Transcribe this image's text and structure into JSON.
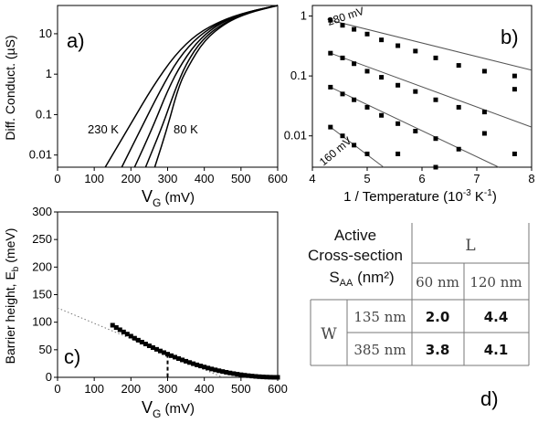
{
  "chart_data": [
    {
      "panel": "a)",
      "type": "line",
      "xlabel_main": "V",
      "xlabel_sub": "G",
      "xlabel_unit": " (mV)",
      "ylabel": "Diff. Conduct. (µS)",
      "xlim": [
        0,
        600
      ],
      "ylim": [
        0.005,
        50
      ],
      "yscale": "log",
      "xticks": [
        0,
        100,
        200,
        300,
        400,
        500,
        600
      ],
      "yticks": [
        {
          "v": 0.01,
          "label": "0.01"
        },
        {
          "v": 0.1,
          "label": "0.1"
        },
        {
          "v": 1,
          "label": "1"
        },
        {
          "v": 10,
          "label": "10"
        }
      ],
      "annotations": {
        "high_T": "230 K",
        "low_T": "80 K"
      },
      "series": [
        {
          "x": [
            130,
            200,
            260,
            320,
            380,
            450,
            520,
            600
          ],
          "y": [
            0.005,
            0.06,
            0.5,
            3,
            10,
            22,
            35,
            50
          ]
        },
        {
          "x": [
            175,
            230,
            280,
            330,
            385,
            450,
            520,
            600
          ],
          "y": [
            0.005,
            0.05,
            0.4,
            2.5,
            9,
            21,
            35,
            50
          ]
        },
        {
          "x": [
            210,
            260,
            300,
            340,
            390,
            450,
            520,
            600
          ],
          "y": [
            0.005,
            0.05,
            0.4,
            2,
            8,
            20,
            34,
            50
          ]
        },
        {
          "x": [
            240,
            285,
            320,
            350,
            395,
            455,
            520,
            600
          ],
          "y": [
            0.005,
            0.05,
            0.4,
            1.8,
            7.5,
            19,
            34,
            50
          ]
        },
        {
          "x": [
            265,
            300,
            330,
            355,
            400,
            460,
            520,
            600
          ],
          "y": [
            0.005,
            0.05,
            0.5,
            1.5,
            7,
            19,
            33,
            50
          ]
        }
      ]
    },
    {
      "panel": "b)",
      "type": "scatter",
      "xlabel": "1 / Temperature (10",
      "xlabel_exp": "-3",
      "xlabel_unit": " K",
      "xlabel_unit_exp": "-1",
      "xlabel_close": ")",
      "xlim": [
        4,
        8
      ],
      "ylim": [
        0.003,
        1.5
      ],
      "yscale": "log",
      "xticks": [
        4,
        5,
        6,
        7,
        8
      ],
      "yticks": [
        {
          "v": 0.01,
          "label": "0.01"
        },
        {
          "v": 0.1,
          "label": "0.1"
        },
        {
          "v": 1,
          "label": "1"
        }
      ],
      "annotations": {
        "top": "280 mV",
        "bottom": "160 mV"
      },
      "series": [
        {
          "x": [
            4.33,
            4.55,
            4.76,
            5.0,
            5.26,
            5.56,
            5.88,
            6.25,
            6.67,
            7.14,
            7.69
          ],
          "y": [
            0.85,
            0.7,
            0.6,
            0.5,
            0.4,
            0.32,
            0.26,
            0.2,
            0.15,
            0.12,
            0.1
          ],
          "fit": [
            [
              4.33,
              0.85
            ],
            [
              8.0,
              0.125
            ]
          ]
        },
        {
          "x": [
            4.33,
            4.55,
            4.76,
            5.0,
            5.26,
            5.56,
            5.88,
            6.25,
            6.67,
            7.14,
            7.69
          ],
          "y": [
            0.24,
            0.2,
            0.16,
            0.12,
            0.095,
            0.07,
            0.055,
            0.04,
            0.03,
            0.025,
            0.06
          ],
          "fit": [
            [
              4.33,
              0.24
            ],
            [
              8.0,
              0.014
            ]
          ]
        },
        {
          "x": [
            4.33,
            4.55,
            4.76,
            5.0,
            5.26,
            5.56,
            5.88,
            6.25,
            6.67,
            7.14,
            7.69
          ],
          "y": [
            0.065,
            0.05,
            0.04,
            0.03,
            0.022,
            0.016,
            0.012,
            0.009,
            0.006,
            0.011,
            0.005
          ],
          "fit": [
            [
              4.33,
              0.065
            ],
            [
              7.4,
              0.003
            ]
          ]
        },
        {
          "x": [
            4.33,
            4.55,
            4.76,
            5.0,
            5.56,
            6.25
          ],
          "y": [
            0.014,
            0.01,
            0.007,
            0.005,
            0.005,
            0.003
          ],
          "fit": [
            [
              4.33,
              0.014
            ],
            [
              5.3,
              0.003
            ]
          ]
        }
      ]
    },
    {
      "panel": "c)",
      "type": "scatter",
      "xlabel_main": "V",
      "xlabel_sub": "G",
      "xlabel_unit": " (mV)",
      "ylabel_main": "Barrier height, E",
      "ylabel_sub": "b",
      "ylabel_unit": " (meV)",
      "xlim": [
        0,
        600
      ],
      "ylim": [
        0,
        300
      ],
      "xticks": [
        0,
        100,
        200,
        300,
        400,
        500,
        600
      ],
      "yticks": [
        0,
        50,
        100,
        150,
        200,
        250,
        300
      ],
      "vertex": 600,
      "curve_coeff": 0.00046667,
      "x_start": 150,
      "x_step": 10,
      "tangent": {
        "x0": 300,
        "y0": 42,
        "slope": -0.28,
        "x_from": 0,
        "x_to": 450
      },
      "marker_x": 300
    },
    {
      "panel": "d)",
      "type": "table",
      "header_lines": [
        "Active",
        "Cross-section"
      ],
      "header_unit_main": "S",
      "header_unit_sub": "AA",
      "header_unit": " (nm²)",
      "col_group": "L",
      "col_headers": [
        "60 nm",
        "120 nm"
      ],
      "row_group": "W",
      "rows": [
        {
          "label": "135 nm",
          "values": [
            "2.0",
            "4.4"
          ]
        },
        {
          "label": "385 nm",
          "values": [
            "3.8",
            "4.1"
          ]
        }
      ]
    }
  ]
}
